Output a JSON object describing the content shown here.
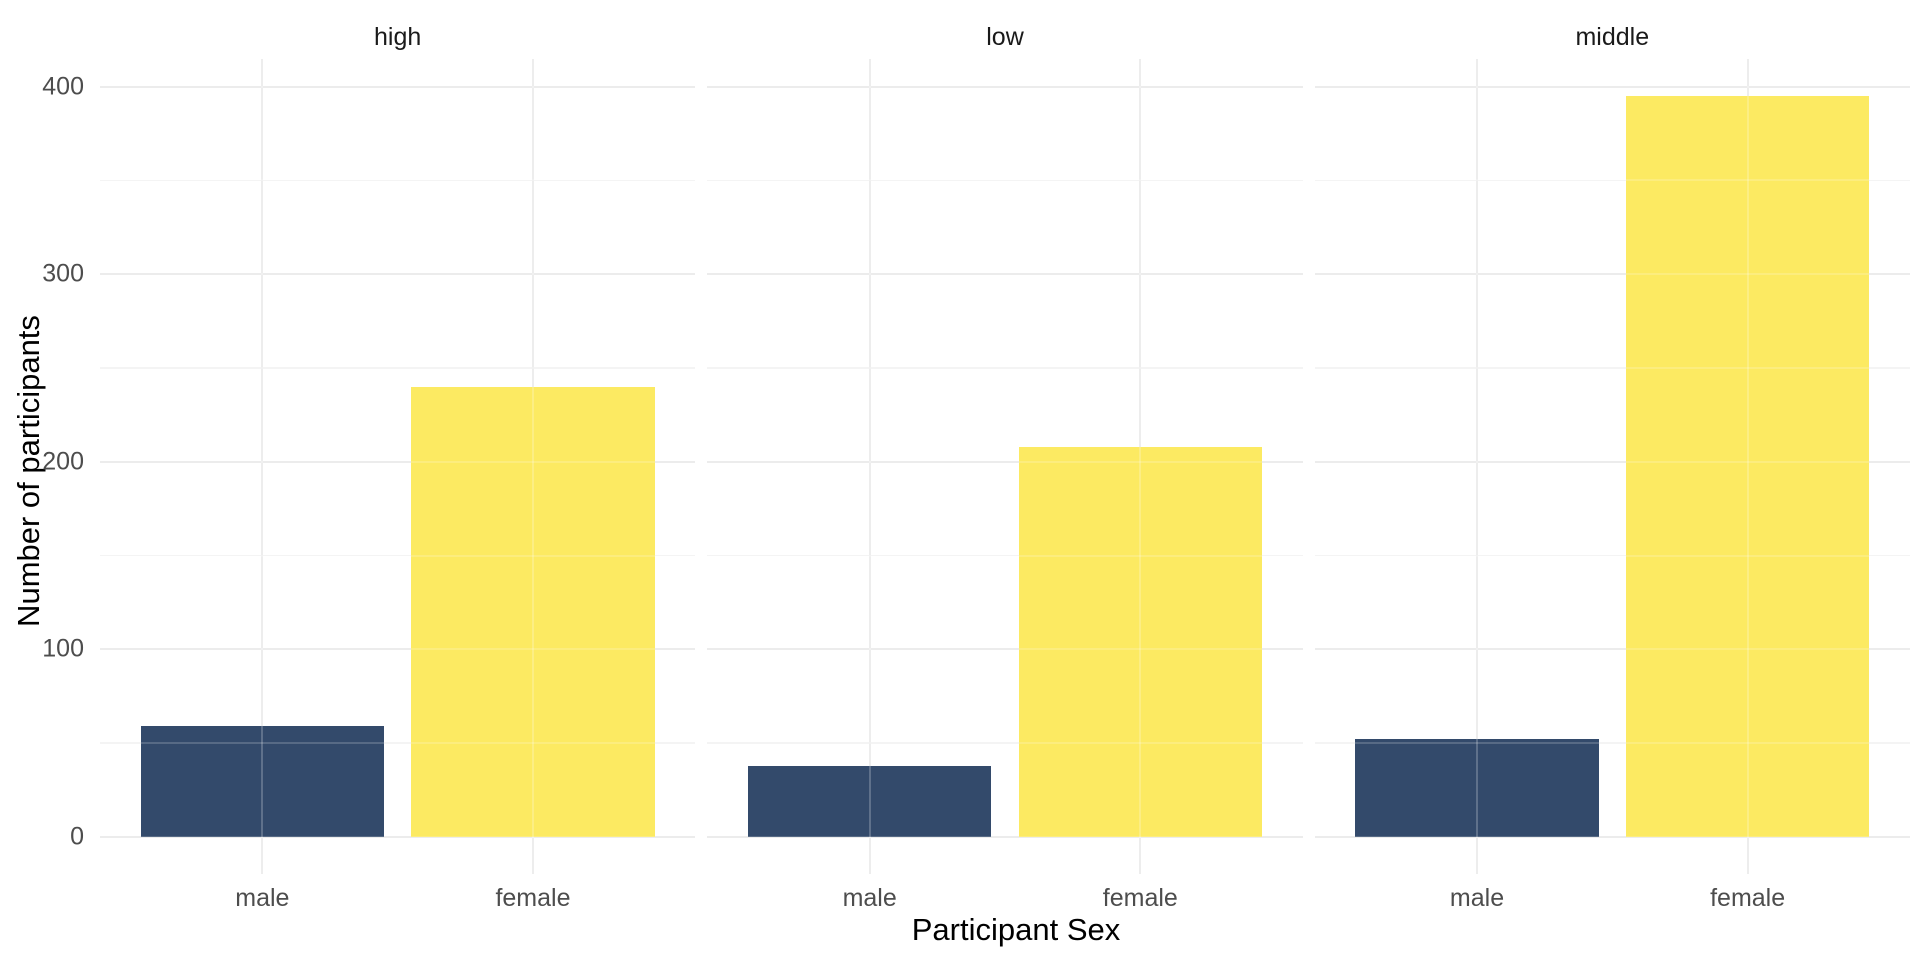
{
  "chart_data": {
    "type": "bar",
    "title": "",
    "xlabel": "Participant Sex",
    "ylabel": "Number of participants",
    "categories": [
      "male",
      "female"
    ],
    "facets": [
      {
        "label": "high",
        "values": [
          59,
          240
        ]
      },
      {
        "label": "low",
        "values": [
          38,
          208
        ]
      },
      {
        "label": "middle",
        "values": [
          52,
          395
        ]
      }
    ],
    "yticks": [
      0,
      100,
      200,
      300,
      400
    ],
    "yticks_minor": [
      50,
      150,
      250,
      350
    ],
    "ylim": [
      0,
      415
    ],
    "grid": true,
    "legend": "none",
    "colors": {
      "male_bar": "#334A6B",
      "female_bar": "#FCEA62",
      "grid_major": "#E8E8E8",
      "grid_minor": "#F2F2F2",
      "tick_text": "#4D4D4D",
      "strip_text": "#1A1A1A",
      "axis_title_text": "#000000",
      "background": "#FFFFFF"
    }
  }
}
